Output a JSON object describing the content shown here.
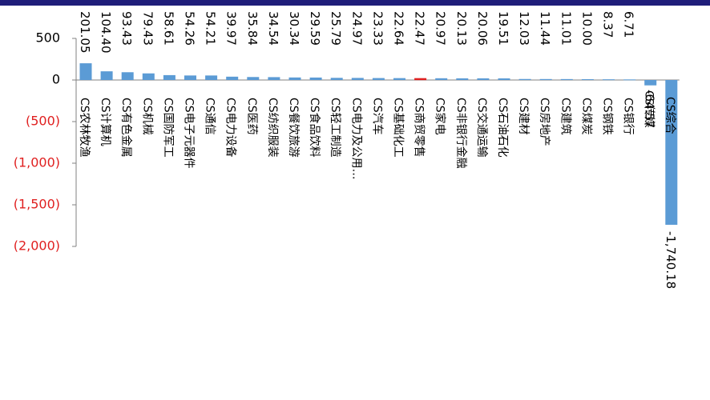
{
  "chart_data": {
    "type": "bar",
    "title": "",
    "xlabel": "",
    "ylabel": "",
    "ylim": [
      -2000,
      500
    ],
    "yticks": [
      500,
      0,
      -500,
      -1000,
      -1500,
      -2000
    ],
    "ytick_labels": [
      "500",
      "0",
      "(500)",
      "(1,000)",
      "(1,500)",
      "(2,000)"
    ],
    "grid": false,
    "legend": "none",
    "colors": {
      "bar": "#5b9bd5",
      "highlight_bar": "#e02020",
      "axis": "#808080",
      "negative_tick": "#e02020",
      "top_bar": "#1f1d7a"
    },
    "highlight_category": "CS商贸零售",
    "categories": [
      "CS农林牧渔",
      "CS计算机",
      "CS有色金属",
      "CS机械",
      "CS国防军工",
      "CS电子元器件",
      "CS通信",
      "CS电力设备",
      "CS医药",
      "CS纺织服装",
      "CS餐饮旅游",
      "CS食品饮料",
      "CS轻工制造",
      "CS电力及公用…",
      "CS汽车",
      "CS基础化工",
      "CS商贸零售",
      "CS家电",
      "CS非银行金融",
      "CS交通运输",
      "CS石油石化",
      "CS建材",
      "CS房地产",
      "CS建筑",
      "CS煤炭",
      "CS钢铁",
      "CS银行",
      "CS传媒",
      "CS综合"
    ],
    "values": [
      201.05,
      104.4,
      93.43,
      79.43,
      58.61,
      54.26,
      54.21,
      39.97,
      35.84,
      34.54,
      30.34,
      29.59,
      25.79,
      24.97,
      23.33,
      22.64,
      22.47,
      20.97,
      20.13,
      20.06,
      19.51,
      12.03,
      11.44,
      11.01,
      10.0,
      8.37,
      6.71,
      -64.57,
      -1740.18
    ],
    "value_labels": [
      "201.05",
      "104.40",
      "93.43",
      "79.43",
      "58.61",
      "54.26",
      "54.21",
      "39.97",
      "35.84",
      "34.54",
      "30.34",
      "29.59",
      "25.79",
      "24.97",
      "23.33",
      "22.64",
      "22.47",
      "20.97",
      "20.13",
      "20.06",
      "19.51",
      "12.03",
      "11.44",
      "11.01",
      "10.00",
      "8.37",
      "6.71",
      "-64.57",
      "-1,740.18"
    ]
  }
}
